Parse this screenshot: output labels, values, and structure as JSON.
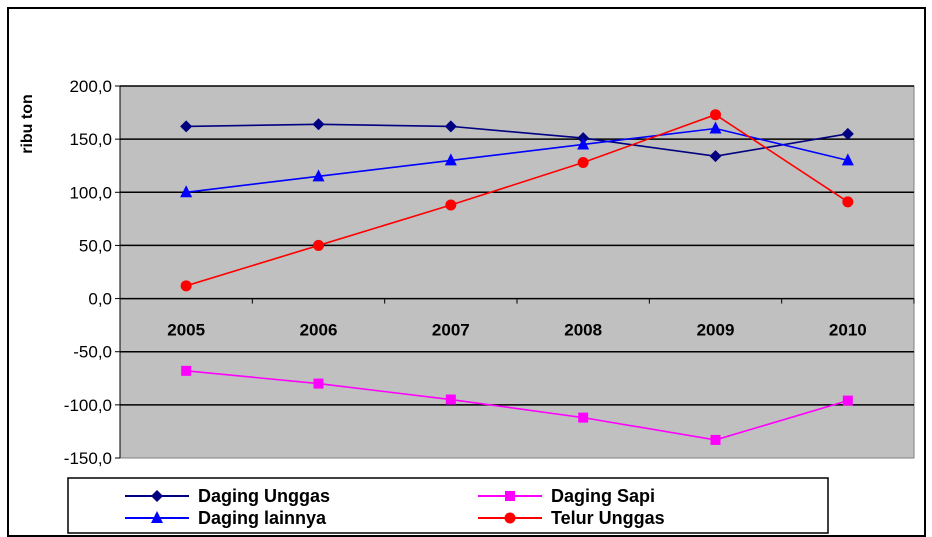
{
  "chart_data": {
    "type": "line",
    "title": "",
    "xlabel": "",
    "ylabel": "ribu ton",
    "ylim": [
      -150,
      200
    ],
    "y_ticks": [
      "200,0",
      "150,0",
      "100,0",
      "50,0",
      "0,0",
      "-50,0",
      "-100,0",
      "-150,0"
    ],
    "categories": [
      "2005",
      "2006",
      "2007",
      "2008",
      "2009",
      "2010"
    ],
    "grid": true,
    "legend_position": "bottom",
    "plot_background": "#c0c0c0",
    "series": [
      {
        "name": "Daging Unggas",
        "color": "#000080",
        "marker": "diamond",
        "values": [
          162,
          164,
          162,
          151,
          134,
          155
        ]
      },
      {
        "name": "Daging  Sapi",
        "color": "#ff00ff",
        "marker": "square",
        "values": [
          -68,
          -80,
          -95,
          -112,
          -133,
          -96
        ]
      },
      {
        "name": "Daging  lainnya",
        "color": "#0000ff",
        "marker": "triangle",
        "values": [
          100,
          115,
          130,
          145,
          160,
          130
        ]
      },
      {
        "name": "Telur Unggas",
        "color": "#ff0000",
        "marker": "circle",
        "values": [
          12,
          50,
          88,
          128,
          173,
          91
        ]
      }
    ]
  }
}
